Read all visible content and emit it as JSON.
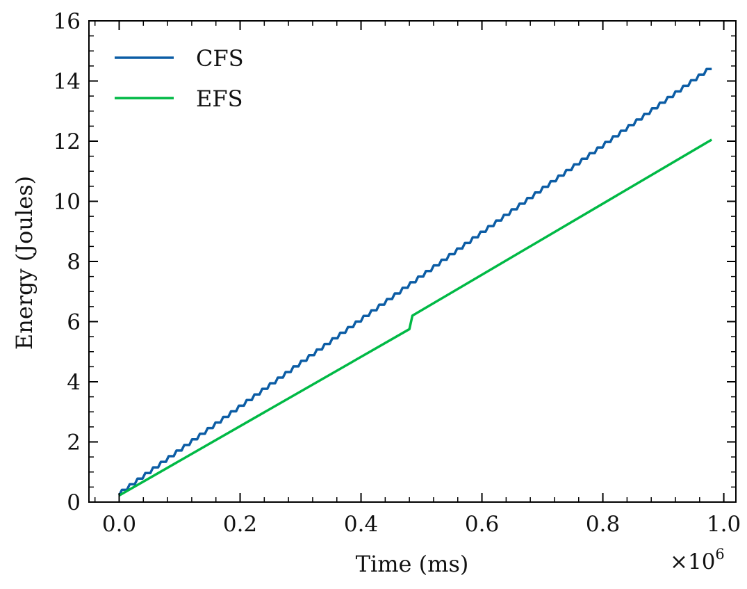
{
  "chart_data": {
    "type": "line",
    "xlabel": "Time (ms)",
    "ylabel": "Energy (Joules)",
    "x_multiplier_base": "×10",
    "x_multiplier_exp": "6",
    "xlim": [
      -0.05,
      1.02
    ],
    "ylim": [
      0,
      16
    ],
    "x_ticks": [
      0.0,
      0.2,
      0.4,
      0.6,
      0.8,
      1.0
    ],
    "x_tick_labels": [
      "0.0",
      "0.2",
      "0.4",
      "0.6",
      "0.8",
      "1.0"
    ],
    "y_ticks": [
      0,
      2,
      4,
      6,
      8,
      10,
      12,
      14,
      16
    ],
    "y_tick_labels": [
      "0",
      "2",
      "4",
      "6",
      "8",
      "10",
      "12",
      "14",
      "16"
    ],
    "grid": false,
    "legend_position": "top-left",
    "series": [
      {
        "name": "CFS",
        "color": "#0C5DA5",
        "style": "stepped",
        "x_range": [
          0.0,
          0.98
        ],
        "y_start": 0.22,
        "y_end": 14.4,
        "steps": 76
      },
      {
        "name": "EFS",
        "color": "#00B945",
        "style": "smooth",
        "points": [
          [
            0.0,
            0.22
          ],
          [
            0.48,
            5.75
          ],
          [
            0.485,
            6.2
          ],
          [
            0.98,
            12.05
          ]
        ]
      }
    ]
  }
}
